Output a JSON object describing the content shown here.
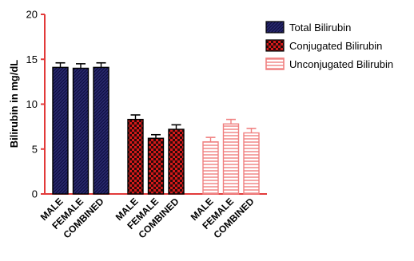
{
  "chart_data": {
    "type": "bar",
    "title": "",
    "xlabel": "",
    "ylabel": "Bilirubin in mg/dL",
    "ylim": [
      0,
      20
    ],
    "yticks": [
      0,
      5,
      10,
      15,
      20
    ],
    "grid": false,
    "legend_position": "top-right",
    "categories": [
      "MALE",
      "FEMALE",
      "COMBINED"
    ],
    "series": [
      {
        "name": "Total Bilirubin",
        "values": [
          14.1,
          14.0,
          14.1
        ],
        "errors": [
          0.5,
          0.5,
          0.5
        ],
        "color": "#1a1a5e",
        "edge_color": "#000000",
        "pattern": "diagonal-stripes"
      },
      {
        "name": "Conjugated Bilirubin",
        "values": [
          8.3,
          6.2,
          7.2
        ],
        "errors": [
          0.5,
          0.4,
          0.5
        ],
        "color": "#cc1111",
        "edge_color": "#000000",
        "pattern": "checkerboard"
      },
      {
        "name": "Unconjugated Bilirubin",
        "values": [
          5.8,
          7.8,
          6.8
        ],
        "errors": [
          0.5,
          0.5,
          0.5
        ],
        "color": "#f08080",
        "edge_color": "#f08080",
        "pattern": "horizontal-lines"
      }
    ]
  }
}
